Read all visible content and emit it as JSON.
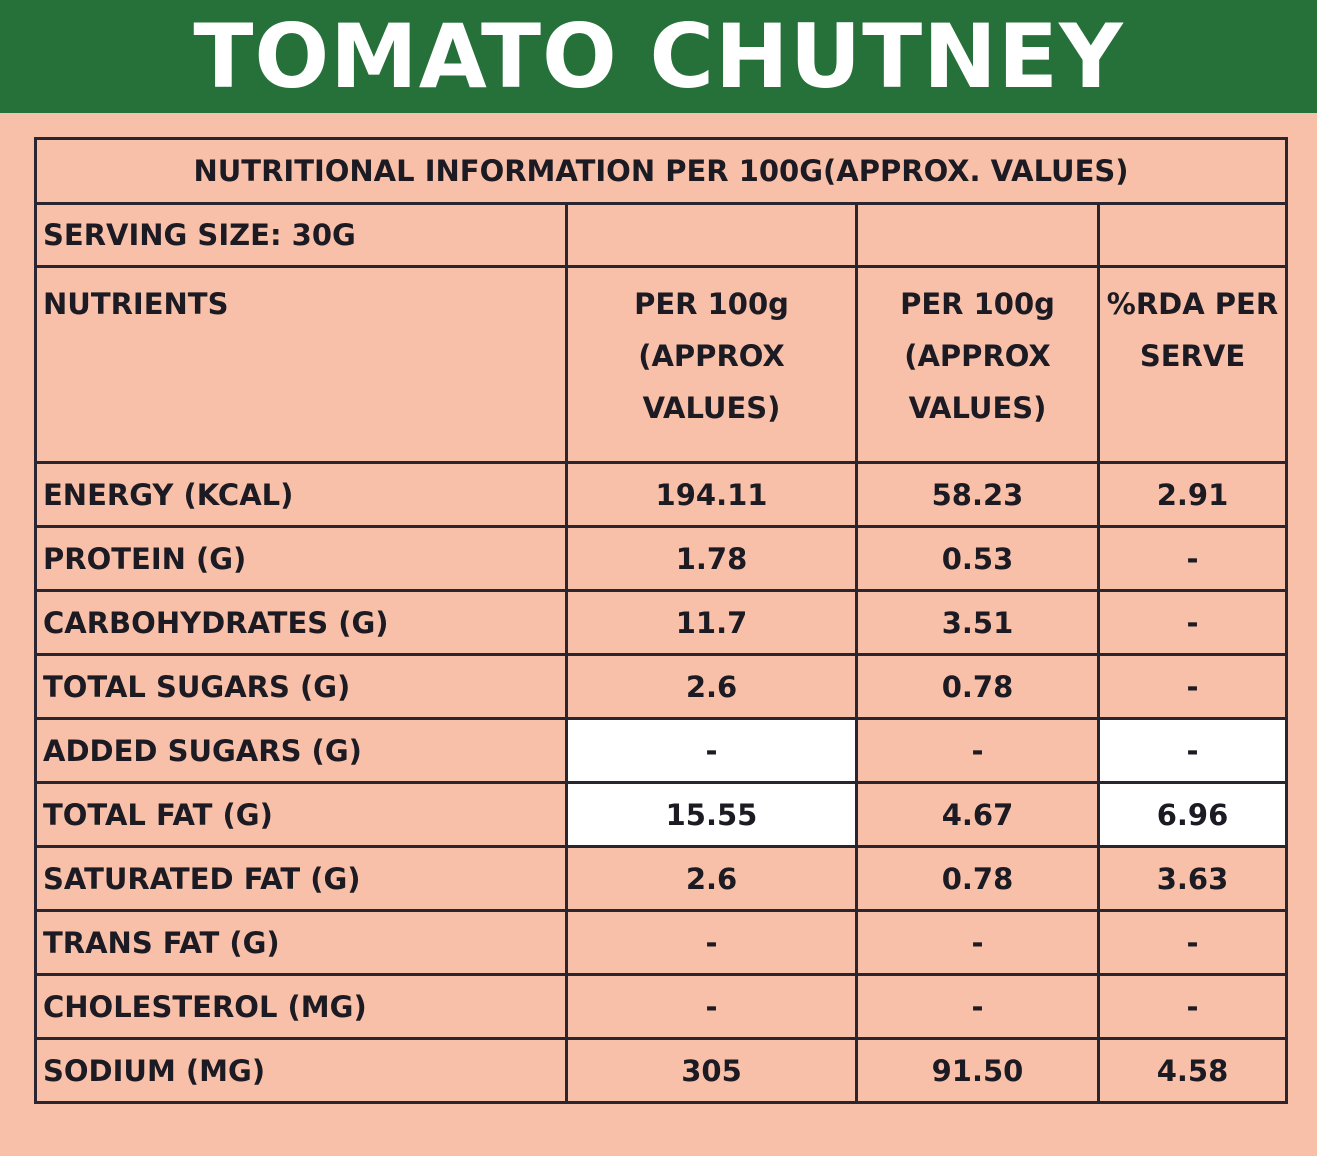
{
  "title": "TOMATO CHUTNEY",
  "table": {
    "caption": "NUTRITIONAL INFORMATION PER 100G(APPROX. VALUES)",
    "serving_size": "SERVING SIZE:  30G",
    "headers": [
      "NUTRIENTS",
      "PER 100g (APPROX VALUES)",
      "PER 100g (APPROX VALUES)",
      "%RDA PER SERVE"
    ],
    "rows": [
      {
        "name": "ENERGY (KCAL)",
        "values": [
          "194.11",
          "58.23",
          "2.91"
        ],
        "highlight": [
          false,
          false,
          false
        ]
      },
      {
        "name": "PROTEIN (G)",
        "values": [
          "1.78",
          "0.53",
          "-"
        ],
        "highlight": [
          false,
          false,
          false
        ]
      },
      {
        "name": "CARBOHYDRATES (G)",
        "values": [
          "11.7",
          "3.51",
          "-"
        ],
        "highlight": [
          false,
          false,
          false
        ]
      },
      {
        "name": "TOTAL SUGARS (G)",
        "values": [
          "2.6",
          "0.78",
          "-"
        ],
        "highlight": [
          false,
          false,
          false
        ]
      },
      {
        "name": "ADDED SUGARS (G)",
        "values": [
          "-",
          "-",
          "-"
        ],
        "highlight": [
          true,
          false,
          true
        ]
      },
      {
        "name": "TOTAL FAT (G)",
        "values": [
          "15.55",
          "4.67",
          "6.96"
        ],
        "highlight": [
          true,
          false,
          true
        ]
      },
      {
        "name": "SATURATED FAT (G)",
        "values": [
          "2.6",
          "0.78",
          "3.63"
        ],
        "highlight": [
          false,
          false,
          false
        ]
      },
      {
        "name": "TRANS FAT (G)",
        "values": [
          "-",
          "-",
          "-"
        ],
        "highlight": [
          false,
          false,
          false
        ]
      },
      {
        "name": "CHOLESTEROL (MG)",
        "values": [
          "-",
          "-",
          "-"
        ],
        "highlight": [
          false,
          false,
          false
        ]
      },
      {
        "name": "SODIUM (MG)",
        "values": [
          "305",
          "91.50",
          "4.58"
        ],
        "highlight": [
          false,
          false,
          false
        ]
      }
    ]
  },
  "colors": {
    "banner": "#26703a",
    "background": "#f8c0a8",
    "highlight": "#ffffff"
  }
}
